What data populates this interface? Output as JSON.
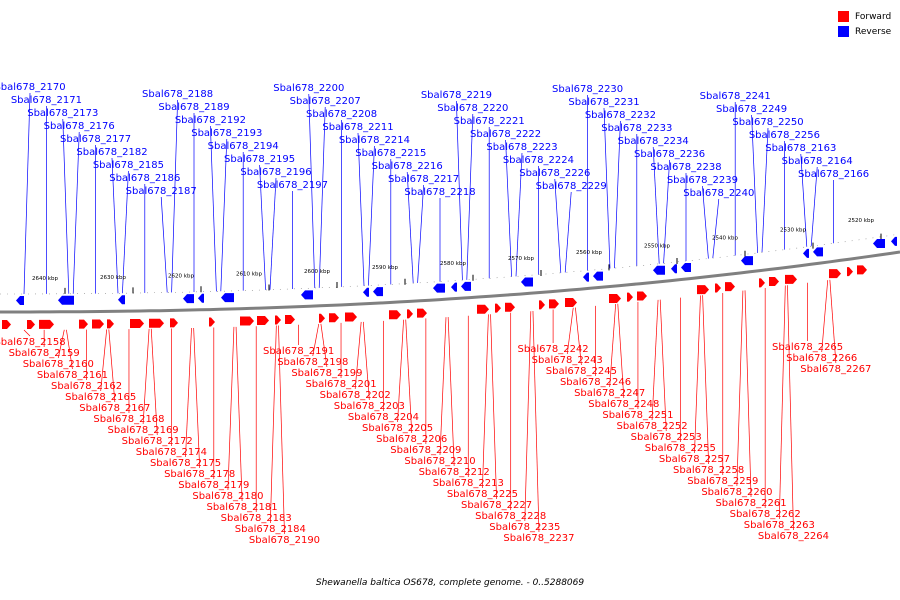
{
  "legend": {
    "forward_label": "Forward",
    "reverse_label": "Reverse",
    "forward_color": "#ff0000",
    "reverse_color": "#0000ff"
  },
  "caption": "Shewanella baltica OS678, complete genome. - 0..5288069",
  "ticks": [
    "2640 kbp",
    "2630 kbp",
    "2620 kbp",
    "2610 kbp",
    "2600 kbp",
    "2590 kbp",
    "2580 kbp",
    "2570 kbp",
    "2560 kbp",
    "2550 kbp",
    "2540 kbp",
    "2530 kbp",
    "2520 kbp"
  ],
  "reverse_genes": [
    "Sbal678_2170",
    "Sbal678_2171",
    "Sbal678_2173",
    "Sbal678_2176",
    "Sbal678_2177",
    "Sbal678_2182",
    "Sbal678_2185",
    "Sbal678_2186",
    "Sbal678_2187",
    "Sbal678_2188",
    "Sbal678_2189",
    "Sbal678_2192",
    "Sbal678_2193",
    "Sbal678_2194",
    "Sbal678_2195",
    "Sbal678_2196",
    "Sbal678_2197",
    "Sbal678_2200",
    "Sbal678_2207",
    "Sbal678_2208",
    "Sbal678_2211",
    "Sbal678_2214",
    "Sbal678_2215",
    "Sbal678_2216",
    "Sbal678_2217",
    "Sbal678_2218",
    "Sbal678_2219",
    "Sbal678_2220",
    "Sbal678_2221",
    "Sbal678_2222",
    "Sbal678_2223",
    "Sbal678_2224",
    "Sbal678_2226",
    "Sbal678_2229",
    "Sbal678_2230",
    "Sbal678_2231",
    "Sbal678_2232",
    "Sbal678_2233",
    "Sbal678_2234",
    "Sbal678_2236",
    "Sbal678_2238",
    "Sbal678_2239",
    "Sbal678_2240",
    "Sbal678_2241",
    "Sbal678_2249",
    "Sbal678_2250",
    "Sbal678_2256",
    "Sbal678_2163",
    "Sbal678_2164",
    "Sbal678_2166"
  ],
  "forward_genes": [
    "Sbal678_2158",
    "Sbal678_2159",
    "Sbal678_2160",
    "Sbal678_2161",
    "Sbal678_2162",
    "Sbal678_2165",
    "Sbal678_2167",
    "Sbal678_2168",
    "Sbal678_2169",
    "Sbal678_2172",
    "Sbal678_2174",
    "Sbal678_2175",
    "Sbal678_2178",
    "Sbal678_2179",
    "Sbal678_2180",
    "Sbal678_2181",
    "Sbal678_2183",
    "Sbal678_2184",
    "Sbal678_2190",
    "Sbal678_2191",
    "Sbal678_2198",
    "Sbal678_2199",
    "Sbal678_2201",
    "Sbal678_2202",
    "Sbal678_2203",
    "Sbal678_2204",
    "Sbal678_2205",
    "Sbal678_2206",
    "Sbal678_2209",
    "Sbal678_2210",
    "Sbal678_2212",
    "Sbal678_2213",
    "Sbal678_2225",
    "Sbal678_2227",
    "Sbal678_2228",
    "Sbal678_2235",
    "Sbal678_2237",
    "Sbal678_2242",
    "Sbal678_2243",
    "Sbal678_2245",
    "Sbal678_2246",
    "Sbal678_2247",
    "Sbal678_2248",
    "Sbal678_2251",
    "Sbal678_2252",
    "Sbal678_2253",
    "Sbal678_2255",
    "Sbal678_2257",
    "Sbal678_2258",
    "Sbal678_2259",
    "Sbal678_2260",
    "Sbal678_2261",
    "Sbal678_2262",
    "Sbal678_2263",
    "Sbal678_2264",
    "Sbal678_2265",
    "Sbal678_2266",
    "Sbal678_2267"
  ]
}
